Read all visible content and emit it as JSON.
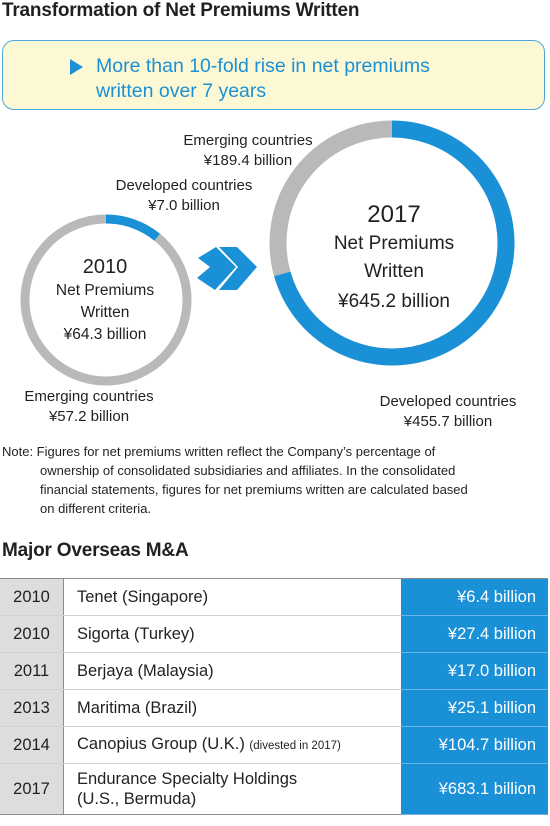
{
  "title": "Transformation of Net Premiums Written",
  "callout": {
    "line1": "More than 10-fold rise in net premiums",
    "line2": "written over 7 years"
  },
  "colors": {
    "developed": "#1a90d6",
    "emerging": "#b9b9bb",
    "accent": "#1a90d6",
    "callout_bg": "#fdf8d4"
  },
  "chart_data": [
    {
      "type": "pie",
      "year": "2010",
      "center_label_1": "Net Premiums",
      "center_label_2": "Written",
      "total_label": "¥64.3 billion",
      "total": 64.3,
      "unit": "billion yen",
      "slices": [
        {
          "name": "Developed countries",
          "value": 7.0,
          "label": "¥7.0 billion"
        },
        {
          "name": "Emerging countries",
          "value": 57.2,
          "label": "¥57.2 billion"
        }
      ]
    },
    {
      "type": "pie",
      "year": "2017",
      "center_label_1": "Net Premiums",
      "center_label_2": "Written",
      "total_label": "¥645.2 billion",
      "total": 645.2,
      "unit": "billion yen",
      "slices": [
        {
          "name": "Developed countries",
          "value": 455.7,
          "label": "¥455.7 billion"
        },
        {
          "name": "Emerging countries",
          "value": 189.4,
          "label": "¥189.4 billion"
        }
      ]
    }
  ],
  "note": {
    "line1": "Note: Figures for net premiums written reflect the Company’s percentage of",
    "line2": "ownership of consolidated subsidiaries and affiliates. In the consolidated",
    "line3": "financial statements, figures for net premiums written are calculated based",
    "line4": "on different criteria."
  },
  "ma_title": "Major Overseas M&A",
  "ma_table": [
    {
      "year": "2010",
      "name": "Tenet (Singapore)",
      "note": "",
      "amount": "¥6.4 billion"
    },
    {
      "year": "2010",
      "name": "Sigorta (Turkey)",
      "note": "",
      "amount": "¥27.4 billion"
    },
    {
      "year": "2011",
      "name": "Berjaya (Malaysia)",
      "note": "",
      "amount": "¥17.0 billion"
    },
    {
      "year": "2013",
      "name": "Maritima (Brazil)",
      "note": "",
      "amount": "¥25.1 billion"
    },
    {
      "year": "2014",
      "name": "Canopius Group (U.K.)",
      "note": "(divested in 2017)",
      "amount": "¥104.7 billion"
    },
    {
      "year": "2017",
      "name": "Endurance Specialty Holdings",
      "name2": "(U.S., Bermuda)",
      "note": "",
      "amount": "¥683.1 billion"
    }
  ]
}
